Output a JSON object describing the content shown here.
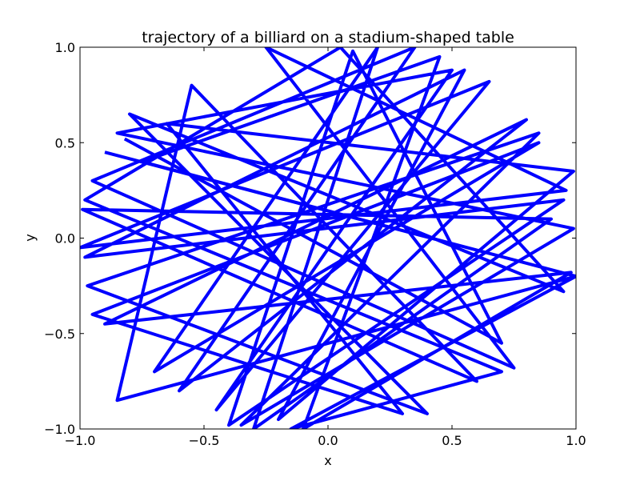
{
  "chart_data": {
    "type": "line",
    "title": "trajectory of a billiard on a stadium-shaped table",
    "xlabel": "x",
    "ylabel": "y",
    "xlim": [
      -1.0,
      1.0
    ],
    "ylim": [
      -1.0,
      1.0
    ],
    "xticks": [
      "−1.0",
      "−0.5",
      "0.0",
      "0.5",
      "1.0"
    ],
    "yticks": [
      "−1.0",
      "−0.5",
      "0.0",
      "0.5",
      "1.0"
    ],
    "xtick_values": [
      -1.0,
      -0.5,
      0.0,
      0.5,
      1.0
    ],
    "ytick_values": [
      -1.0,
      -0.5,
      0.0,
      0.5,
      1.0
    ],
    "grid": false,
    "legend": "none",
    "line_color": "#0000ff",
    "series": [
      {
        "x": [
          -0.82,
          0.7,
          0.1,
          -0.4,
          0.95,
          -0.98,
          0.55,
          -0.2,
          0.99,
          -0.65,
          0.3,
          -0.95,
          0.85,
          -0.7,
          0.2,
          -0.3,
          0.9,
          -0.99,
          0.6,
          -0.55,
          -0.85,
          1.0,
          -0.75,
          0.45,
          -0.1,
          0.98,
          -0.9,
          0.8,
          -0.6,
          0.35,
          -0.95,
          0.75,
          -0.25,
          0.96,
          -1.0,
          0.65,
          -0.45,
          0.5,
          -0.85,
          0.99,
          -0.35,
          0.85,
          -0.97,
          0.4,
          -0.8,
          0.95,
          0.05,
          -0.98,
          0.7,
          -0.15,
          1.0,
          -0.9
        ],
        "y": [
          0.52,
          -0.55,
          0.98,
          -0.98,
          0.2,
          -0.1,
          0.88,
          -0.95,
          0.35,
          0.6,
          -0.92,
          -0.4,
          0.5,
          -0.7,
          1.0,
          -1.0,
          0.1,
          0.15,
          -0.75,
          0.8,
          -0.85,
          -0.2,
          0.4,
          0.95,
          -1.0,
          -0.18,
          -0.45,
          0.62,
          -0.8,
          1.0,
          0.3,
          -0.68,
          1.0,
          0.25,
          -0.05,
          0.82,
          -0.9,
          0.88,
          0.55,
          0.05,
          -0.98,
          0.55,
          -0.25,
          -0.92,
          0.65,
          -0.28,
          1.0,
          0.2,
          -0.7,
          -1.0,
          -0.2,
          0.45
        ]
      }
    ]
  }
}
